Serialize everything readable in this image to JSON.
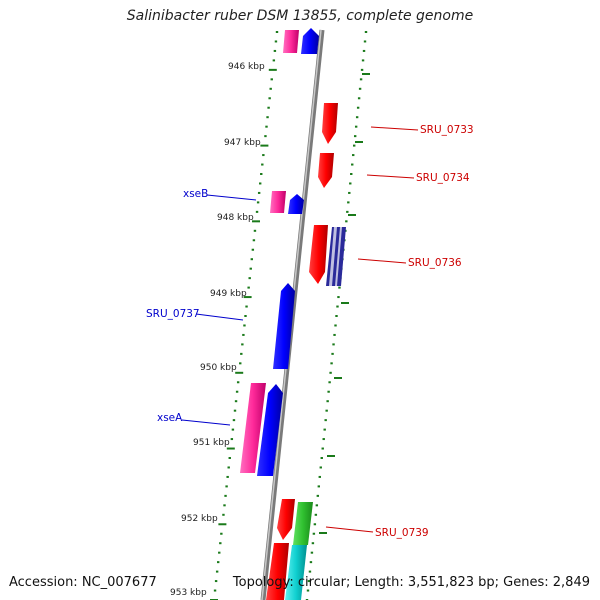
{
  "title": "Salinibacter ruber DSM 13855, complete genome",
  "accession": "Accession: NC_007677",
  "summary": "Topology: circular; Length: 3,551,823 bp; Genes: 2,849",
  "ticks": [
    "946 kbp",
    "947 kbp",
    "948 kbp",
    "949 kbp",
    "950 kbp",
    "951 kbp",
    "952 kbp",
    "953 kbp"
  ],
  "gene_labels": {
    "sru0733": "SRU_0733",
    "sru0734": "SRU_0734",
    "xseB": "xseB",
    "sru0736": "SRU_0736",
    "sru0737": "SRU_0737",
    "xseA": "xseA",
    "sru0739": "SRU_0739"
  },
  "colors": {
    "forward_label": "#0000cc",
    "reverse_label": "#cc0000",
    "tick": "#1a7a1a",
    "backbone": "#888888"
  }
}
